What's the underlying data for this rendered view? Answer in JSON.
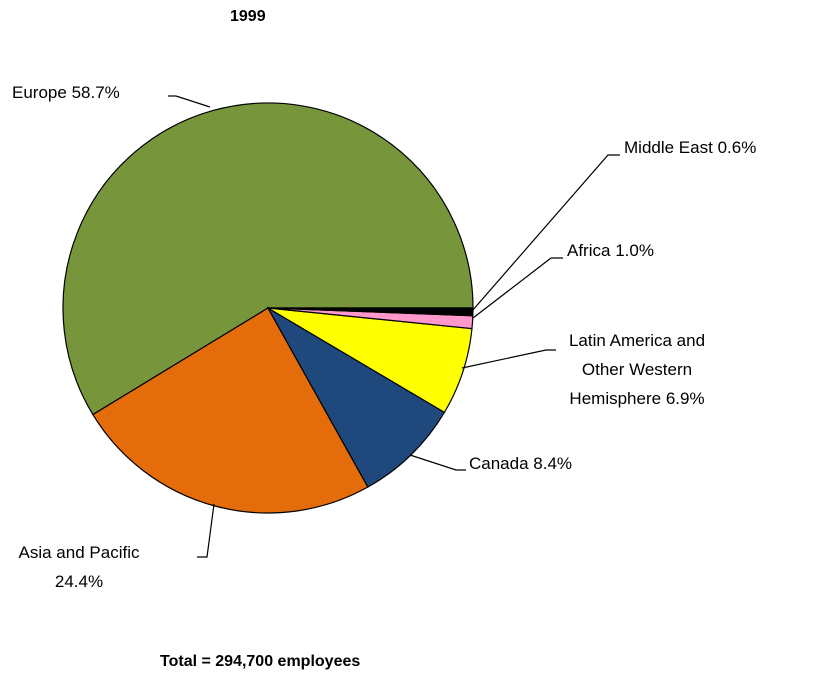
{
  "chart_data": {
    "type": "pie",
    "title": "1999",
    "categories": [
      "Europe",
      "Asia and Pacific",
      "Canada",
      "Latin America and Other Western Hemisphere",
      "Africa",
      "Middle East"
    ],
    "values": [
      58.7,
      24.4,
      8.4,
      6.9,
      1.0,
      0.6
    ],
    "value_labels": [
      "58.7%",
      "24.4%",
      "8.4%",
      "6.9%",
      "1.0%",
      "0.6%"
    ],
    "colors": [
      "#77963c",
      "#e46c0a",
      "#1f497d",
      "#ffff00",
      "#ff99cc",
      "#000000"
    ],
    "annotation": "Total = 294,700 employees"
  }
}
